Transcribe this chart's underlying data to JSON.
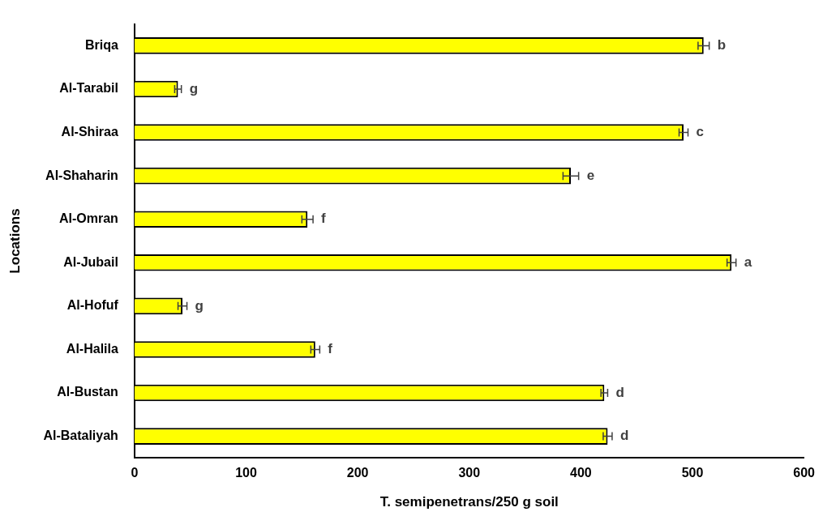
{
  "chart_data": {
    "type": "bar",
    "orientation": "horizontal",
    "xlabel": "T. semipenetrans/250 g soil",
    "ylabel": "Locations",
    "categories": [
      "Briqa",
      "Al-Tarabil",
      "Al-Shiraa",
      "Al-Shaharin",
      "Al-Omran",
      "Al-Jubail",
      "Al-Hofuf",
      "Al-Halila",
      "Al-Bustan",
      "Al-Bataliyah"
    ],
    "values": [
      510,
      39,
      492,
      391,
      155,
      535,
      43,
      162,
      421,
      424
    ],
    "errors": [
      5,
      3,
      4,
      7,
      5,
      4,
      4,
      4,
      3,
      4
    ],
    "color": "#ffff00",
    "xlim": [
      0,
      600
    ],
    "xticks": [
      0,
      100,
      200,
      300,
      400,
      500,
      600
    ],
    "grid": false,
    "legend": false,
    "annotations": [
      {
        "text": "b",
        "x": 510,
        "y": "Briqa"
      },
      {
        "text": "g",
        "x": 39,
        "y": "Al-Tarabil"
      },
      {
        "text": "c",
        "x": 492,
        "y": "Al-Shiraa"
      },
      {
        "text": "e",
        "x": 391,
        "y": "Al-Shaharin"
      },
      {
        "text": "f",
        "x": 155,
        "y": "Al-Omran"
      },
      {
        "text": "a",
        "x": 535,
        "y": "Al-Jubail"
      },
      {
        "text": "g",
        "x": 43,
        "y": "Al-Hofuf"
      },
      {
        "text": "f",
        "x": 162,
        "y": "Al-Halila"
      },
      {
        "text": "d",
        "x": 421,
        "y": "Al-Bustan"
      },
      {
        "text": "d",
        "x": 424,
        "y": "Al-Bataliyah"
      }
    ]
  }
}
